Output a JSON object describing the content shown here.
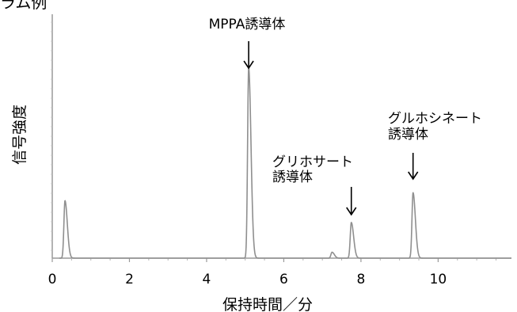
{
  "chart_data": {
    "type": "line",
    "title": "",
    "partial_title": "ラム例",
    "xlabel": "保持時間／分",
    "ylabel": "信号強度",
    "xlim": [
      0,
      11.9
    ],
    "ylim": [
      0,
      1
    ],
    "x_ticks": [
      0,
      2,
      4,
      6,
      8,
      10
    ],
    "x_tick_labels": [
      "0",
      "2",
      "4",
      "6",
      "8",
      "10"
    ],
    "grid": false,
    "series": [
      {
        "peaks": [
          {
            "x": 0.33,
            "height": 0.29
          },
          {
            "x": 5.09,
            "height": 0.96
          },
          {
            "x": 7.25,
            "height": 0.03
          },
          {
            "x": 7.75,
            "height": 0.18
          },
          {
            "x": 9.35,
            "height": 0.33
          }
        ]
      }
    ],
    "annotations": [
      {
        "lines": [
          "MPPA誘導体"
        ],
        "x": 5.09
      },
      {
        "lines": [
          "グリホサート",
          "誘導体"
        ],
        "x": 7.75
      },
      {
        "lines": [
          "グルホシネート",
          "誘導体"
        ],
        "x": 9.35
      }
    ]
  }
}
